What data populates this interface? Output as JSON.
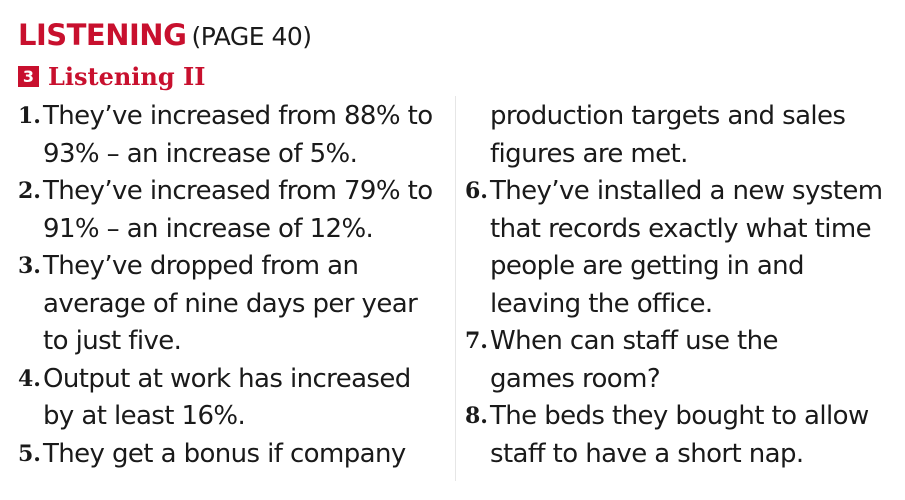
{
  "header": {
    "title": "LISTENING",
    "page_ref": "(PAGE 40)"
  },
  "section": {
    "number": "3",
    "title": "Listening II"
  },
  "answers": {
    "a1": {
      "num": "1.",
      "lines": [
        "They’ve increased from 88% to",
        "93% – an increase of 5%."
      ]
    },
    "a2": {
      "num": "2.",
      "lines": [
        "They’ve increased from 79% to",
        "91% – an increase of 12%."
      ]
    },
    "a3": {
      "num": "3.",
      "lines": [
        "They’ve dropped from an",
        "average of nine days per year",
        "to just five."
      ]
    },
    "a4": {
      "num": "4.",
      "lines": [
        "Output at work has increased",
        "by at least 16%."
      ]
    },
    "a5": {
      "num": "5.",
      "lines": [
        "They get a bonus if company",
        "production targets and sales",
        "figures are met."
      ]
    },
    "a6": {
      "num": "6.",
      "lines": [
        "They’ve installed a new system",
        "that records exactly what time",
        "people are getting in and",
        "leaving the office."
      ]
    },
    "a7": {
      "num": "7.",
      "lines": [
        "When can staff use the",
        "games room?"
      ]
    },
    "a8": {
      "num": "8.",
      "lines": [
        "The beds they bought to allow",
        "staff to have a short nap."
      ]
    }
  },
  "colors": {
    "accent": "#c8102e",
    "text": "#1a1a1a"
  }
}
